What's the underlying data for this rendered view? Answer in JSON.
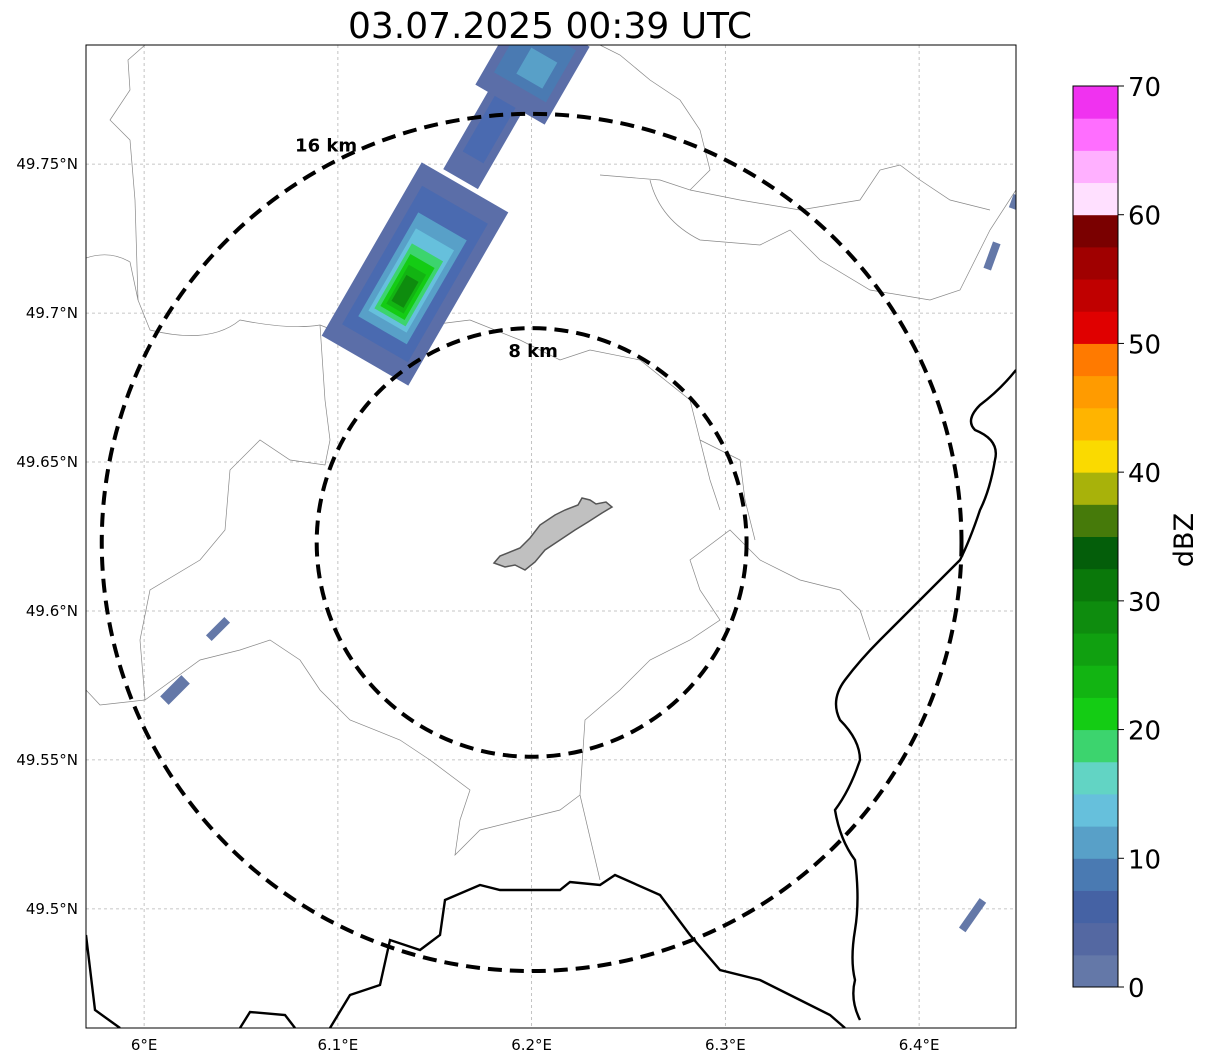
{
  "title": "03.07.2025 00:39 UTC",
  "map": {
    "lon_ticks": [
      "6°E",
      "6.1°E",
      "6.2°E",
      "6.3°E",
      "6.4°E"
    ],
    "lat_ticks": [
      "49.75°N",
      "49.7°N",
      "49.65°N",
      "49.6°N",
      "49.55°N",
      "49.5°N"
    ],
    "lon_range": [
      5.97,
      6.45
    ],
    "lat_range": [
      49.46,
      49.79
    ],
    "center": {
      "lon": 6.2,
      "lat": 49.623
    },
    "rings": [
      {
        "radius_km": 8,
        "label": "8 km"
      },
      {
        "radius_km": 16,
        "label": "16 km"
      }
    ],
    "grid": true
  },
  "colorbar": {
    "label": "dBZ",
    "ticks": [
      "0",
      "10",
      "20",
      "30",
      "40",
      "50",
      "60",
      "70"
    ],
    "min": 0,
    "max": 70,
    "step": 2.5,
    "colors": [
      "#6478a8",
      "#5468a2",
      "#4562a4",
      "#4a7ab2",
      "#58a0c8",
      "#66c0dc",
      "#62d4c4",
      "#3cd46e",
      "#14cc14",
      "#12b412",
      "#10a010",
      "#0e8c0e",
      "#0a780a",
      "#045e0a",
      "#467a0a",
      "#a8b20a",
      "#fada00",
      "#ffb400",
      "#ff9b00",
      "#ff7a00",
      "#e00000",
      "#c00000",
      "#a00000",
      "#7a0000",
      "#ffe0ff",
      "#ffb0ff",
      "#ff6eff",
      "#f032f0"
    ]
  }
}
